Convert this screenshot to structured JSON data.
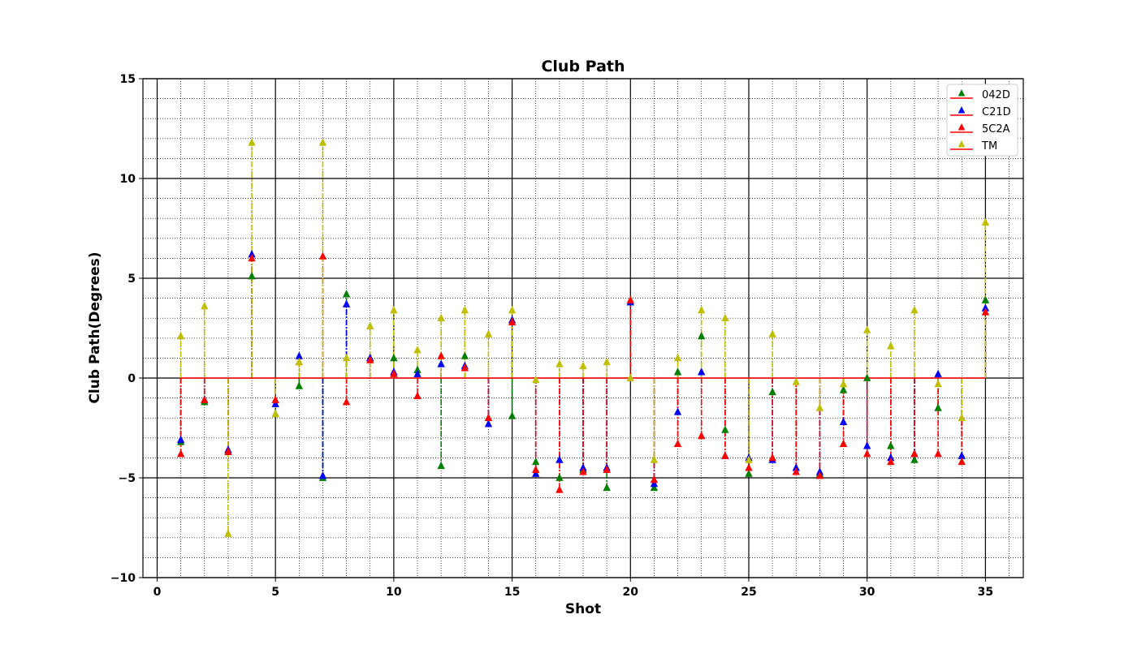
{
  "chart_data": {
    "type": "scatter",
    "style": "stem",
    "title": "Club Path",
    "xlabel": "Shot",
    "ylabel": "Club Path(Degrees)",
    "xlim": [
      -0.6,
      36.6
    ],
    "ylim": [
      -10,
      15
    ],
    "xticks": [
      0,
      5,
      10,
      15,
      20,
      25,
      30,
      35
    ],
    "yticks": [
      -10,
      -5,
      0,
      5,
      10,
      15
    ],
    "grid": true,
    "minor_grid": true,
    "legend_position": "top-right",
    "baseline": 0,
    "baseline_color": "#ff0000",
    "x": [
      1,
      2,
      3,
      4,
      5,
      6,
      7,
      8,
      9,
      10,
      11,
      12,
      13,
      14,
      15,
      16,
      17,
      18,
      19,
      20,
      21,
      22,
      23,
      24,
      25,
      26,
      27,
      28,
      29,
      30,
      31,
      32,
      33,
      34,
      35
    ],
    "series": [
      {
        "name": "042D",
        "color": "#008000",
        "marker": "triangle-up",
        "values": [
          -3.2,
          -1.2,
          -3.7,
          5.1,
          -1.8,
          -0.4,
          -5.0,
          4.2,
          1.0,
          1.0,
          0.4,
          -4.4,
          1.1,
          -2.0,
          -1.9,
          -4.2,
          -5.0,
          -4.6,
          -5.5,
          3.8,
          -5.5,
          0.3,
          2.1,
          -2.6,
          -4.8,
          -0.7,
          -4.7,
          -4.8,
          -0.6,
          0.0,
          -3.4,
          -4.1,
          -1.5,
          -3.9,
          3.9
        ]
      },
      {
        "name": "C21D",
        "color": "#0000ff",
        "marker": "triangle-up",
        "values": [
          -3.1,
          -1.1,
          -3.6,
          6.2,
          -1.3,
          1.1,
          -4.9,
          3.7,
          1.0,
          0.3,
          0.2,
          0.7,
          0.6,
          -2.3,
          2.9,
          -4.8,
          -4.1,
          -4.5,
          -4.5,
          3.8,
          -5.3,
          -1.7,
          0.3,
          -3.9,
          -4.0,
          -4.1,
          -4.5,
          -4.7,
          -2.2,
          -3.4,
          -4.0,
          -3.8,
          0.2,
          -3.9,
          3.5
        ]
      },
      {
        "name": "5C2A",
        "color": "#ff0000",
        "marker": "triangle-up",
        "values": [
          -3.8,
          -1.1,
          -3.7,
          6.0,
          -1.1,
          0.8,
          6.1,
          -1.2,
          0.9,
          0.2,
          -0.9,
          1.1,
          0.5,
          -2.0,
          2.8,
          -4.6,
          -5.6,
          -4.7,
          -4.6,
          3.9,
          -5.1,
          -3.3,
          -2.9,
          -3.9,
          -4.5,
          -4.0,
          -4.7,
          -4.9,
          -3.3,
          -3.8,
          -4.2,
          -3.8,
          -3.8,
          -4.2,
          3.3
        ]
      },
      {
        "name": "TM",
        "color": "#bfbf00",
        "marker": "triangle-up",
        "values": [
          2.1,
          3.6,
          -7.8,
          11.8,
          -1.8,
          0.8,
          11.8,
          1.0,
          2.6,
          3.4,
          1.4,
          3.0,
          3.4,
          2.2,
          3.4,
          -0.1,
          0.7,
          0.6,
          0.8,
          0.0,
          -4.1,
          1.0,
          3.4,
          3.0,
          -4.1,
          2.2,
          -0.2,
          -1.5,
          -0.3,
          2.4,
          1.6,
          3.4,
          -0.3,
          -2.0,
          7.8
        ]
      }
    ]
  }
}
